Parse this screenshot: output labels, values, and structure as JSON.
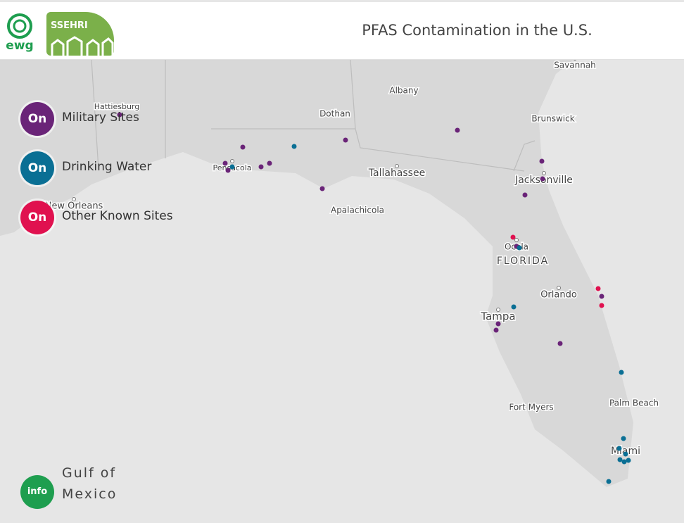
{
  "header": {
    "logo_ewg": "ewg",
    "logo_ssehri": "SSEHRI",
    "title": "PFAS Contamination in the U.S."
  },
  "layers": [
    {
      "state": "On",
      "label": "Military Sites"
    },
    {
      "state": "On",
      "label": "Drinking Water"
    },
    {
      "state": "On",
      "label": "Other Known Sites"
    }
  ],
  "info_button": "info",
  "map_labels": {
    "places": [
      "Savannah",
      "Albany",
      "Hattiesburg",
      "Dothan",
      "Brunswick",
      "Pensacola",
      "Tallahassee",
      "Jacksonville",
      "New Orleans",
      "Apalachicola",
      "Ocala",
      "FLORIDA",
      "Orlando",
      "Tampa",
      "Fort Myers",
      "Palm Beach",
      "Miami"
    ],
    "water_body": [
      "Gulf of",
      "Mexico"
    ]
  }
}
